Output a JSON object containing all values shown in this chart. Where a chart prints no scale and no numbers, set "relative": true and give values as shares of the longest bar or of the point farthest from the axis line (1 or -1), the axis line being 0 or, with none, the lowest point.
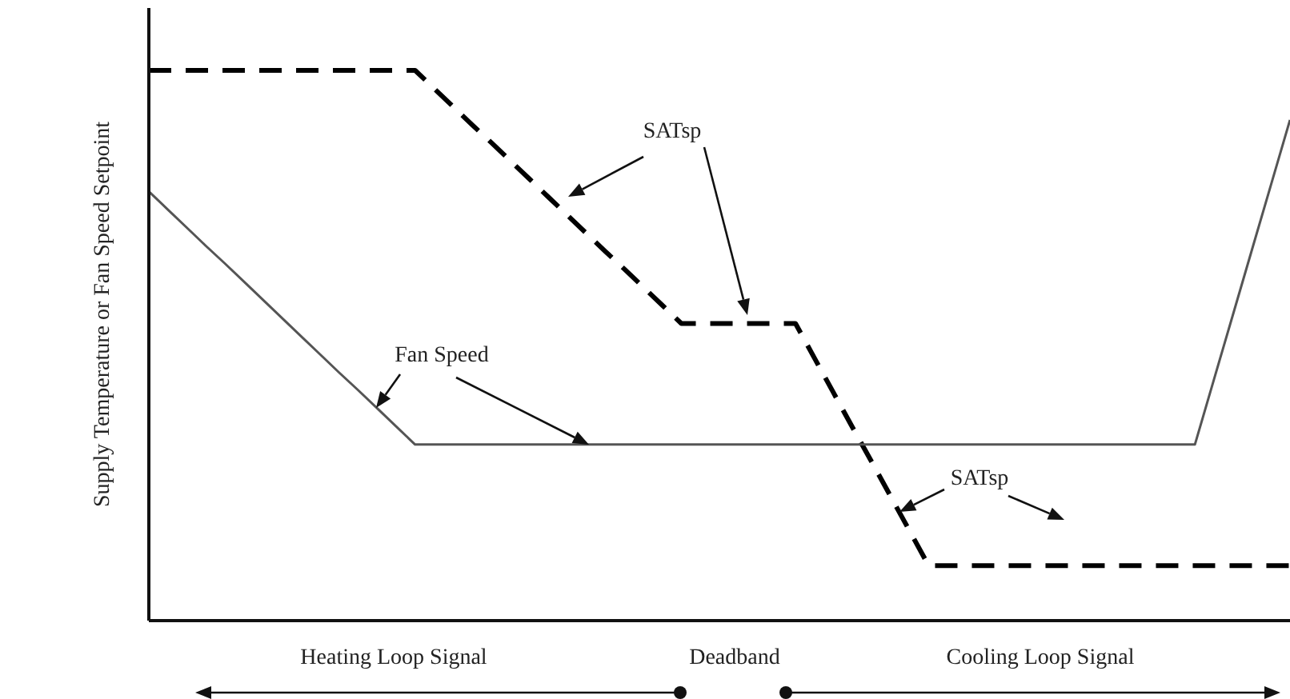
{
  "chart_data": {
    "type": "line",
    "relative": true,
    "ylabel": "Supply Temperature or Fan Speed Setpoint",
    "categories": [
      null,
      null,
      null,
      null,
      null,
      null,
      null,
      null,
      null,
      null,
      null,
      null,
      null,
      null,
      null,
      null,
      null,
      null,
      null,
      null,
      null,
      null,
      null,
      null,
      null,
      null,
      null,
      null,
      null,
      null,
      null,
      null,
      null,
      null,
      null,
      null,
      null,
      null,
      null,
      null,
      null,
      null,
      null,
      null,
      null,
      null,
      null,
      null,
      null,
      null,
      null,
      null,
      null,
      null,
      null,
      null,
      null,
      null,
      null,
      null,
      null
    ],
    "series": [
      {
        "color": "#000000",
        "line_style": "dashed",
        "values": [
          1.0,
          1.0,
          1.0,
          1.0,
          1.0,
          1.0,
          1.0,
          1.0,
          1.0,
          1.0,
          1.0,
          1.0,
          1.0,
          1.0,
          1.0,
          0.967,
          0.934,
          0.901,
          0.869,
          0.836,
          0.803,
          0.77,
          0.737,
          0.704,
          0.671,
          0.639,
          0.606,
          0.573,
          0.54,
          0.54,
          0.54,
          0.54,
          0.54,
          0.54,
          0.54,
          0.477,
          0.414,
          0.351,
          0.289,
          0.226,
          0.163,
          0.1,
          0.1,
          0.1,
          0.1,
          0.1,
          0.1,
          0.1,
          0.1,
          0.1,
          0.1,
          0.1,
          0.1,
          0.1,
          0.1,
          0.1,
          0.1,
          0.1,
          0.1,
          0.1,
          0.1
        ]
      },
      {
        "color": "#555555",
        "line_style": "solid",
        "values": [
          0.78,
          0.747,
          0.714,
          0.681,
          0.649,
          0.616,
          0.583,
          0.55,
          0.517,
          0.484,
          0.451,
          0.419,
          0.386,
          0.353,
          0.32,
          0.32,
          0.32,
          0.32,
          0.32,
          0.32,
          0.32,
          0.32,
          0.32,
          0.32,
          0.32,
          0.32,
          0.32,
          0.32,
          0.32,
          0.32,
          0.32,
          0.32,
          0.32,
          0.32,
          0.32,
          0.32,
          0.32,
          0.32,
          0.32,
          0.32,
          0.32,
          0.32,
          0.32,
          0.32,
          0.32,
          0.32,
          0.32,
          0.32,
          0.32,
          0.32,
          0.32,
          0.32,
          0.32,
          0.32,
          0.32,
          0.32,
          0.438,
          0.556,
          0.674,
          0.792,
          0.91
        ]
      }
    ],
    "annotations": [
      "SATsp",
      "Fan Speed",
      "SATsp",
      "Heating Loop Signal",
      "Deadband",
      "Cooling Loop Signal"
    ]
  }
}
